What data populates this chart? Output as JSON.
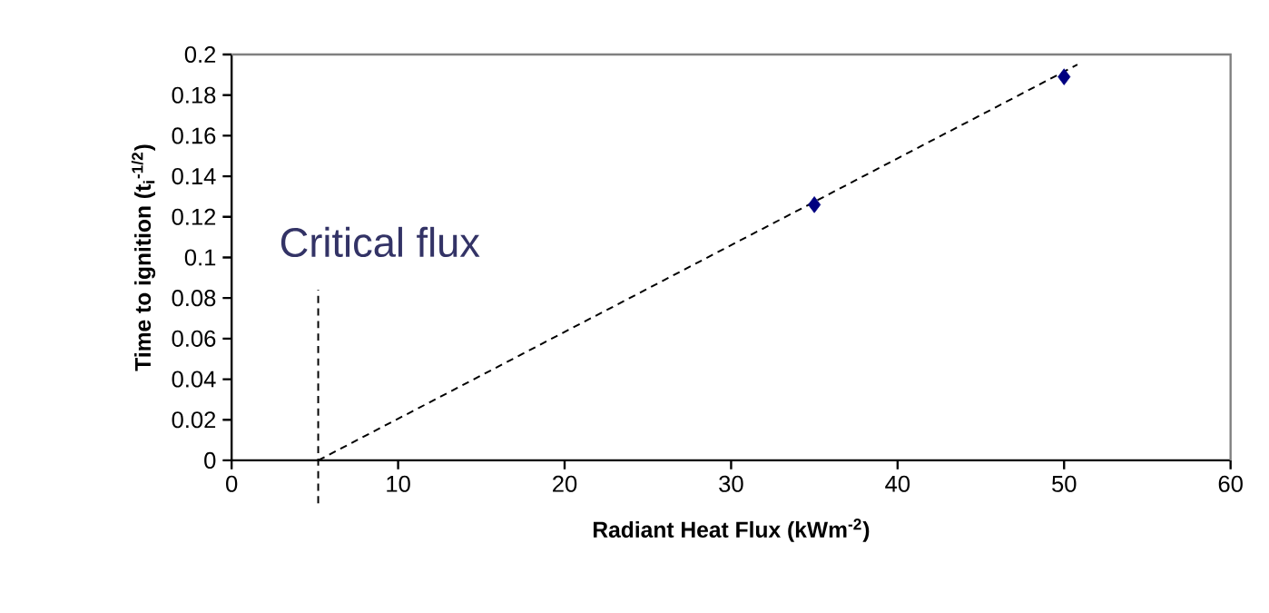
{
  "chart_data": {
    "type": "scatter",
    "xlabel": "Radiant Heat Flux (kWm$^{-2}$)",
    "ylabel": "Time to ignition (t$_{i}$$^{-1/2}$)",
    "xlim": [
      0,
      60
    ],
    "xticks": [
      0,
      10,
      20,
      30,
      40,
      50,
      60
    ],
    "ylim": [
      0,
      0.2
    ],
    "yticks": [
      0,
      0.02,
      0.04,
      0.06,
      0.08,
      0.1,
      0.12,
      0.14,
      0.16,
      0.18,
      0.2
    ],
    "marker": "diamond",
    "grid": false,
    "series": [
      {
        "color": "#000080",
        "x": [
          35,
          50
        ],
        "values": [
          0.126,
          0.189
        ]
      },
      {
        "type": "line",
        "color": "#000000",
        "line_style": "dashed",
        "marker": "none",
        "x": [
          5.2,
          50.8
        ],
        "values": [
          0,
          0.195
        ]
      }
    ],
    "ref_lines": [
      {
        "axis": "x",
        "value": 5.2,
        "label": "Critical flux",
        "color": "#000000",
        "line_style": "dashed"
      }
    ]
  }
}
